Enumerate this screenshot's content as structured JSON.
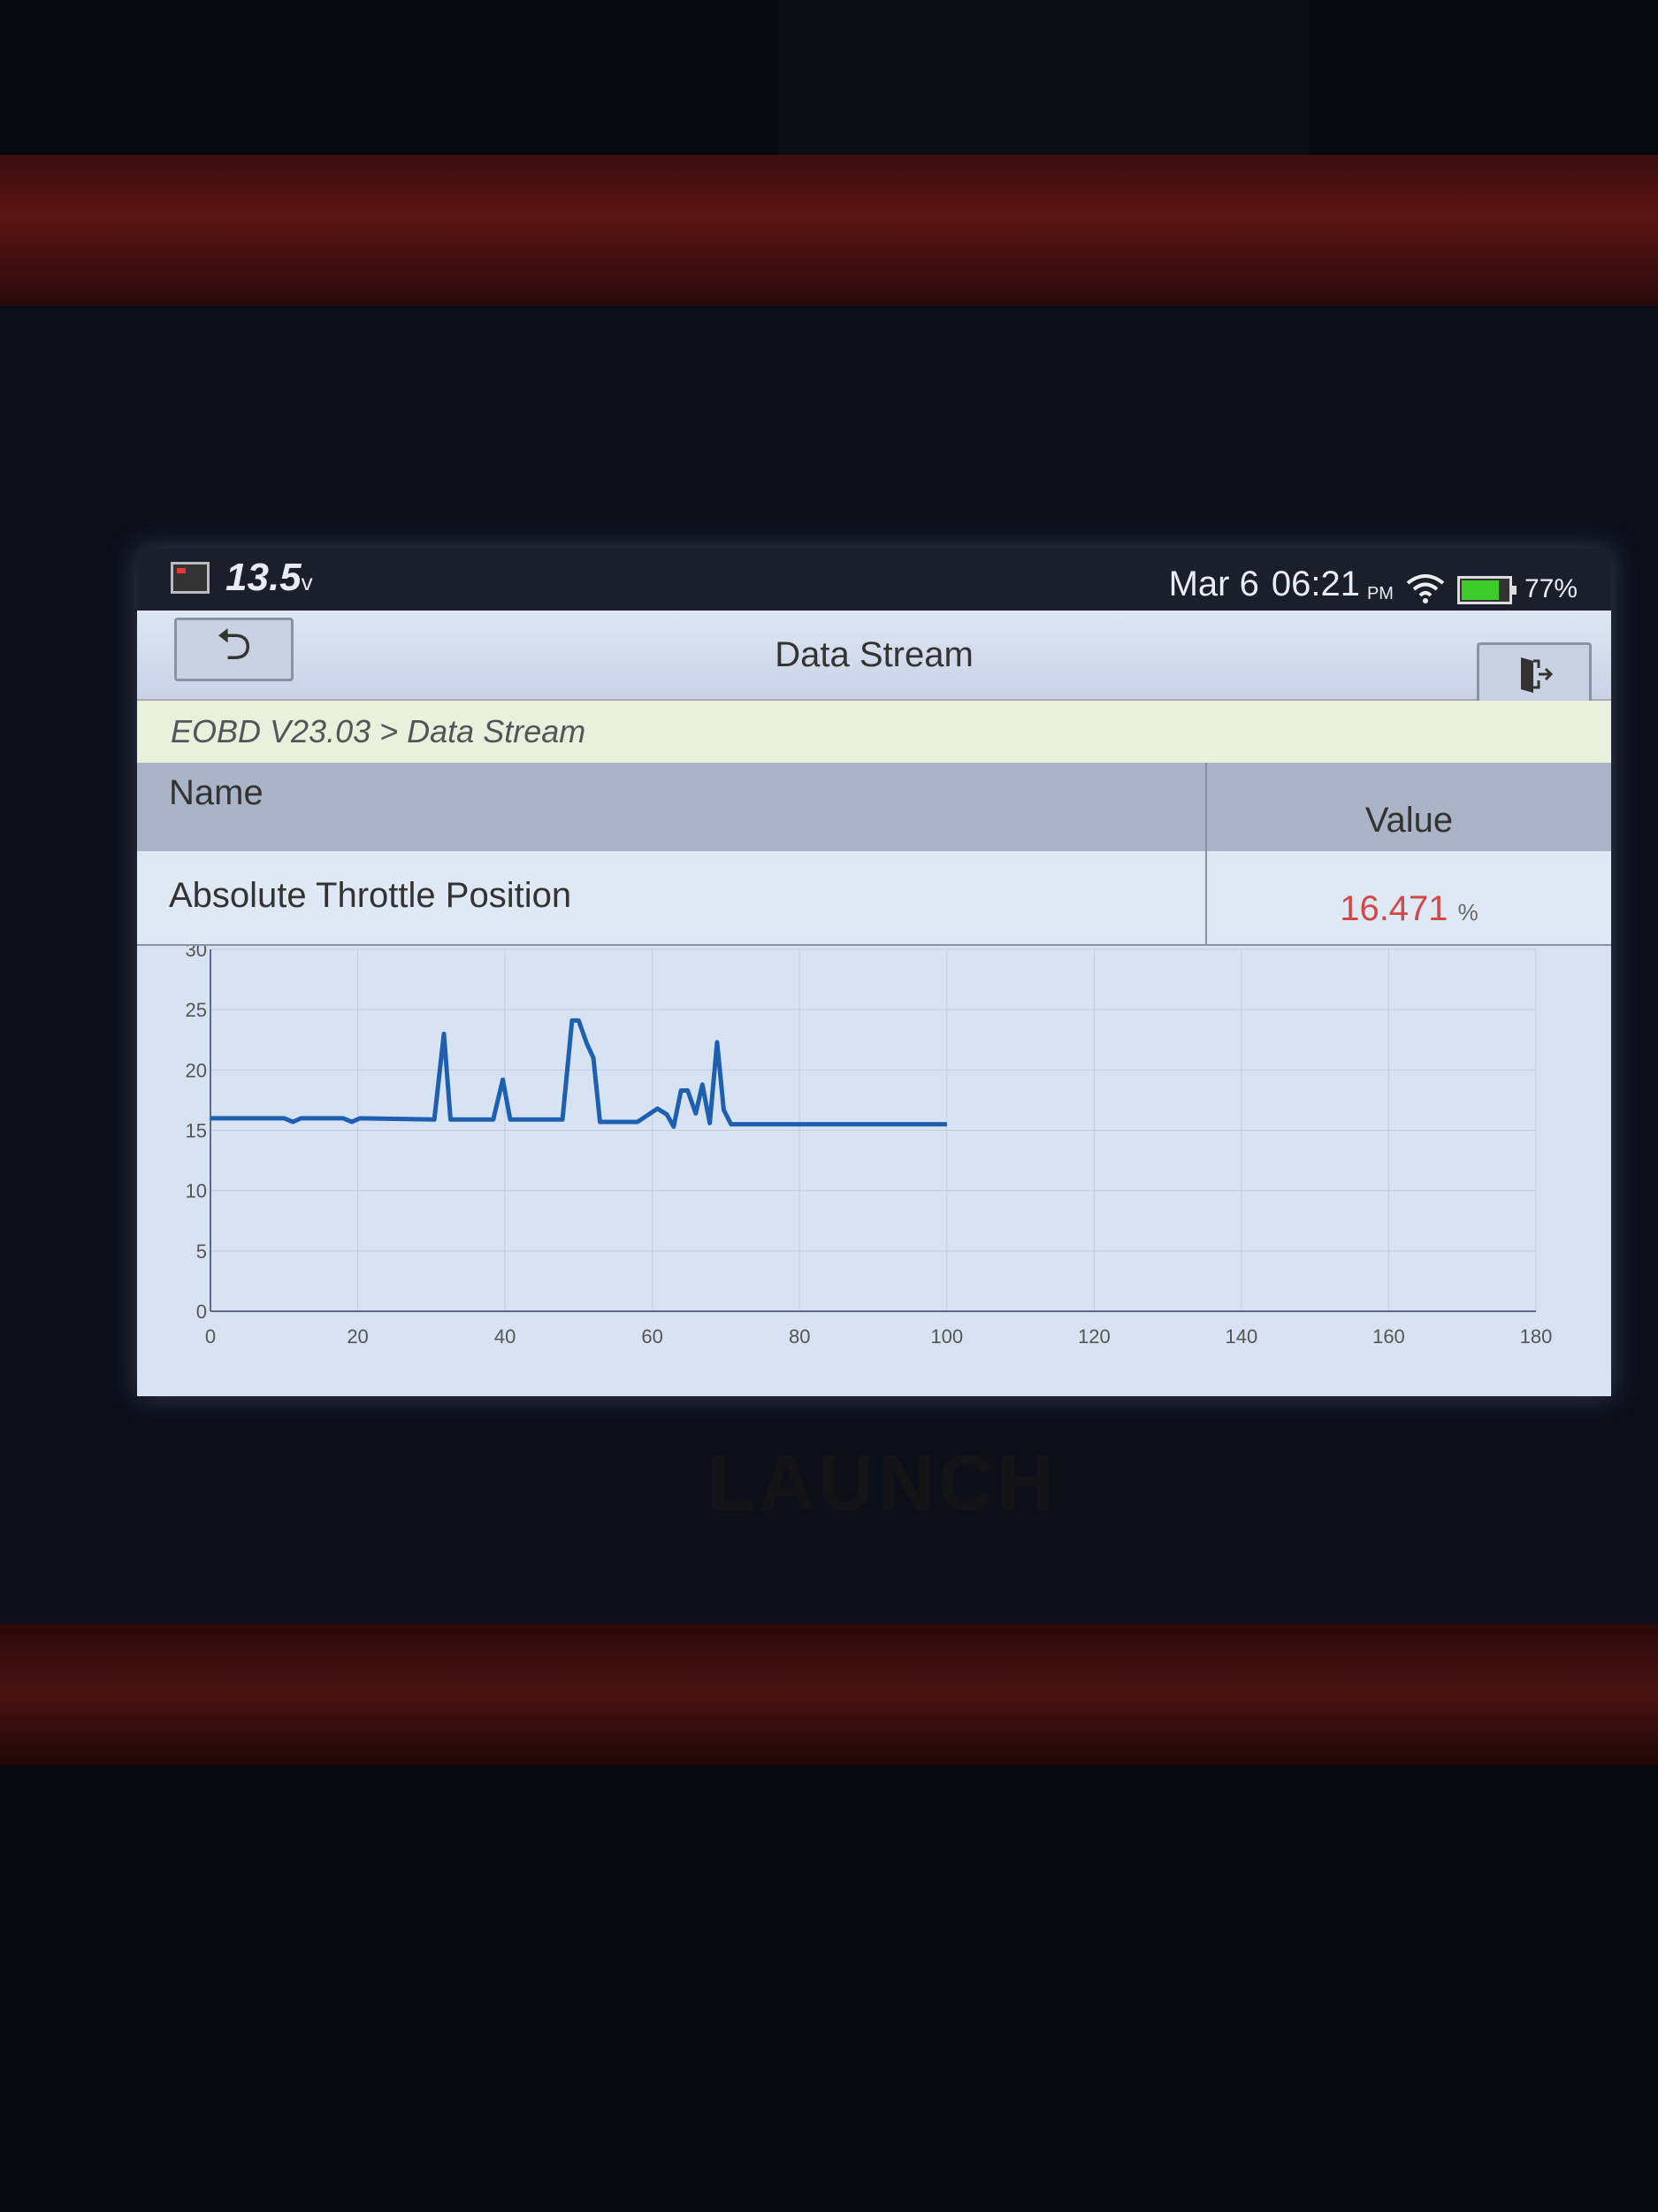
{
  "device": {
    "brand_logo": "LAUNCH"
  },
  "status_bar": {
    "voltage": "13.5",
    "voltage_unit": "v",
    "date": "Mar 6",
    "time": "06:21",
    "ampm": "PM",
    "battery_percent": "77%",
    "battery_level": 0.77,
    "battery_color": "#3ecc2a"
  },
  "header": {
    "title": "Data Stream",
    "back_icon": "undo-arrow-icon",
    "exit_icon": "exit-door-icon"
  },
  "breadcrumb": "EOBD V23.03 > Data Stream",
  "table": {
    "columns": [
      "Name",
      "Value"
    ],
    "rows": [
      {
        "name": "Absolute Throttle Position",
        "value": "16.471",
        "unit": "%",
        "value_color": "#d04848"
      }
    ]
  },
  "chart_data": {
    "type": "line",
    "xlim": [
      0,
      180
    ],
    "ylim": [
      0,
      30
    ],
    "x_ticks": [
      0,
      20,
      40,
      60,
      80,
      100,
      120,
      140,
      160,
      180
    ],
    "y_ticks": [
      0,
      5,
      10,
      15,
      20,
      25,
      30
    ],
    "grid": true,
    "line_color": "#1f5fb0",
    "series": [
      {
        "x": [
          0,
          10,
          11.2,
          12.3,
          18,
          19.2,
          20.3,
          30.4,
          31.7,
          32.6,
          38.4,
          39.7,
          40.7,
          47.8,
          49.1,
          50,
          51.1,
          52,
          52.9,
          58,
          60.7,
          62,
          62.9,
          63.9,
          64.8,
          65.9,
          66.8,
          67.8,
          68.8,
          69.7,
          70.7,
          100
        ],
        "y": [
          16,
          16,
          15.7,
          16,
          16,
          15.7,
          16,
          15.9,
          23,
          15.9,
          15.9,
          19.2,
          15.9,
          15.9,
          24.1,
          24.1,
          22.2,
          21,
          15.7,
          15.7,
          16.8,
          16.3,
          15.3,
          18.3,
          18.3,
          16.4,
          18.8,
          15.6,
          22.3,
          16.7,
          15.5,
          15.5
        ]
      }
    ]
  }
}
